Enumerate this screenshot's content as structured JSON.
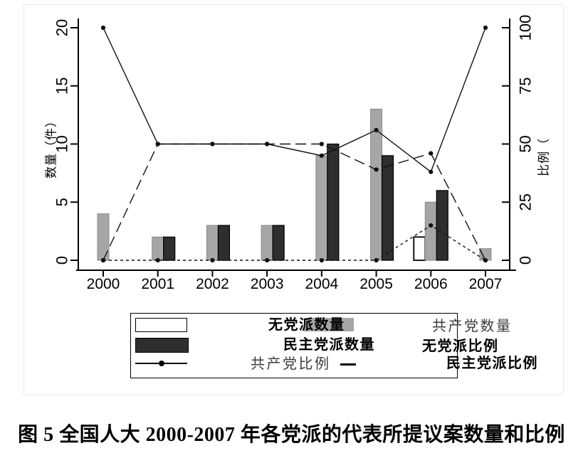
{
  "figure": {
    "caption": "图 5 全国人大 2000-2007 年各党派的代表所提议案数量和比例"
  },
  "chart_data": {
    "type": "bar+line combo (dual axis)",
    "categories": [
      "2000",
      "2001",
      "2002",
      "2003",
      "2004",
      "2005",
      "2006",
      "2007"
    ],
    "left_axis": {
      "label": "数量（件）",
      "ticks": [
        0,
        5,
        10,
        15,
        20
      ],
      "range": [
        0,
        20
      ]
    },
    "right_axis": {
      "label": "比例（",
      "ticks": [
        0,
        25,
        50,
        75,
        100
      ],
      "range": [
        0,
        100
      ]
    },
    "bar_series": [
      {
        "name": "无党派数量",
        "axis": "left",
        "color": "#ffffff",
        "border": "#000000",
        "offset": -16,
        "values": [
          0,
          0,
          0,
          0,
          0,
          0,
          2,
          0
        ]
      },
      {
        "name": "共产党数量",
        "axis": "left",
        "color": "#a6a6a6",
        "border": "#8a8a8a",
        "offset": 0,
        "values": [
          4,
          2,
          3,
          3,
          9,
          13,
          5,
          1
        ]
      },
      {
        "name": "民主党派数量",
        "axis": "left",
        "color": "#2e2e2e",
        "border": "#000000",
        "offset": 16,
        "values": [
          0,
          2,
          3,
          3,
          10,
          9,
          6,
          0
        ]
      }
    ],
    "line_series": [
      {
        "name": "共产党比例",
        "axis": "right",
        "dash": "solid",
        "color": "#111111",
        "values": [
          100,
          50,
          50,
          50,
          45,
          56,
          38,
          100
        ]
      },
      {
        "name": "民主党派比例",
        "axis": "right",
        "dash": "long",
        "color": "#111111",
        "values": [
          0,
          50,
          50,
          50,
          50,
          39,
          46,
          0
        ]
      },
      {
        "name": "无党派比例",
        "axis": "right",
        "dash": "short",
        "color": "#111111",
        "values": [
          0,
          0,
          0,
          0,
          0,
          0,
          15,
          0
        ]
      }
    ],
    "legend_position": "bottom",
    "grid": false
  }
}
